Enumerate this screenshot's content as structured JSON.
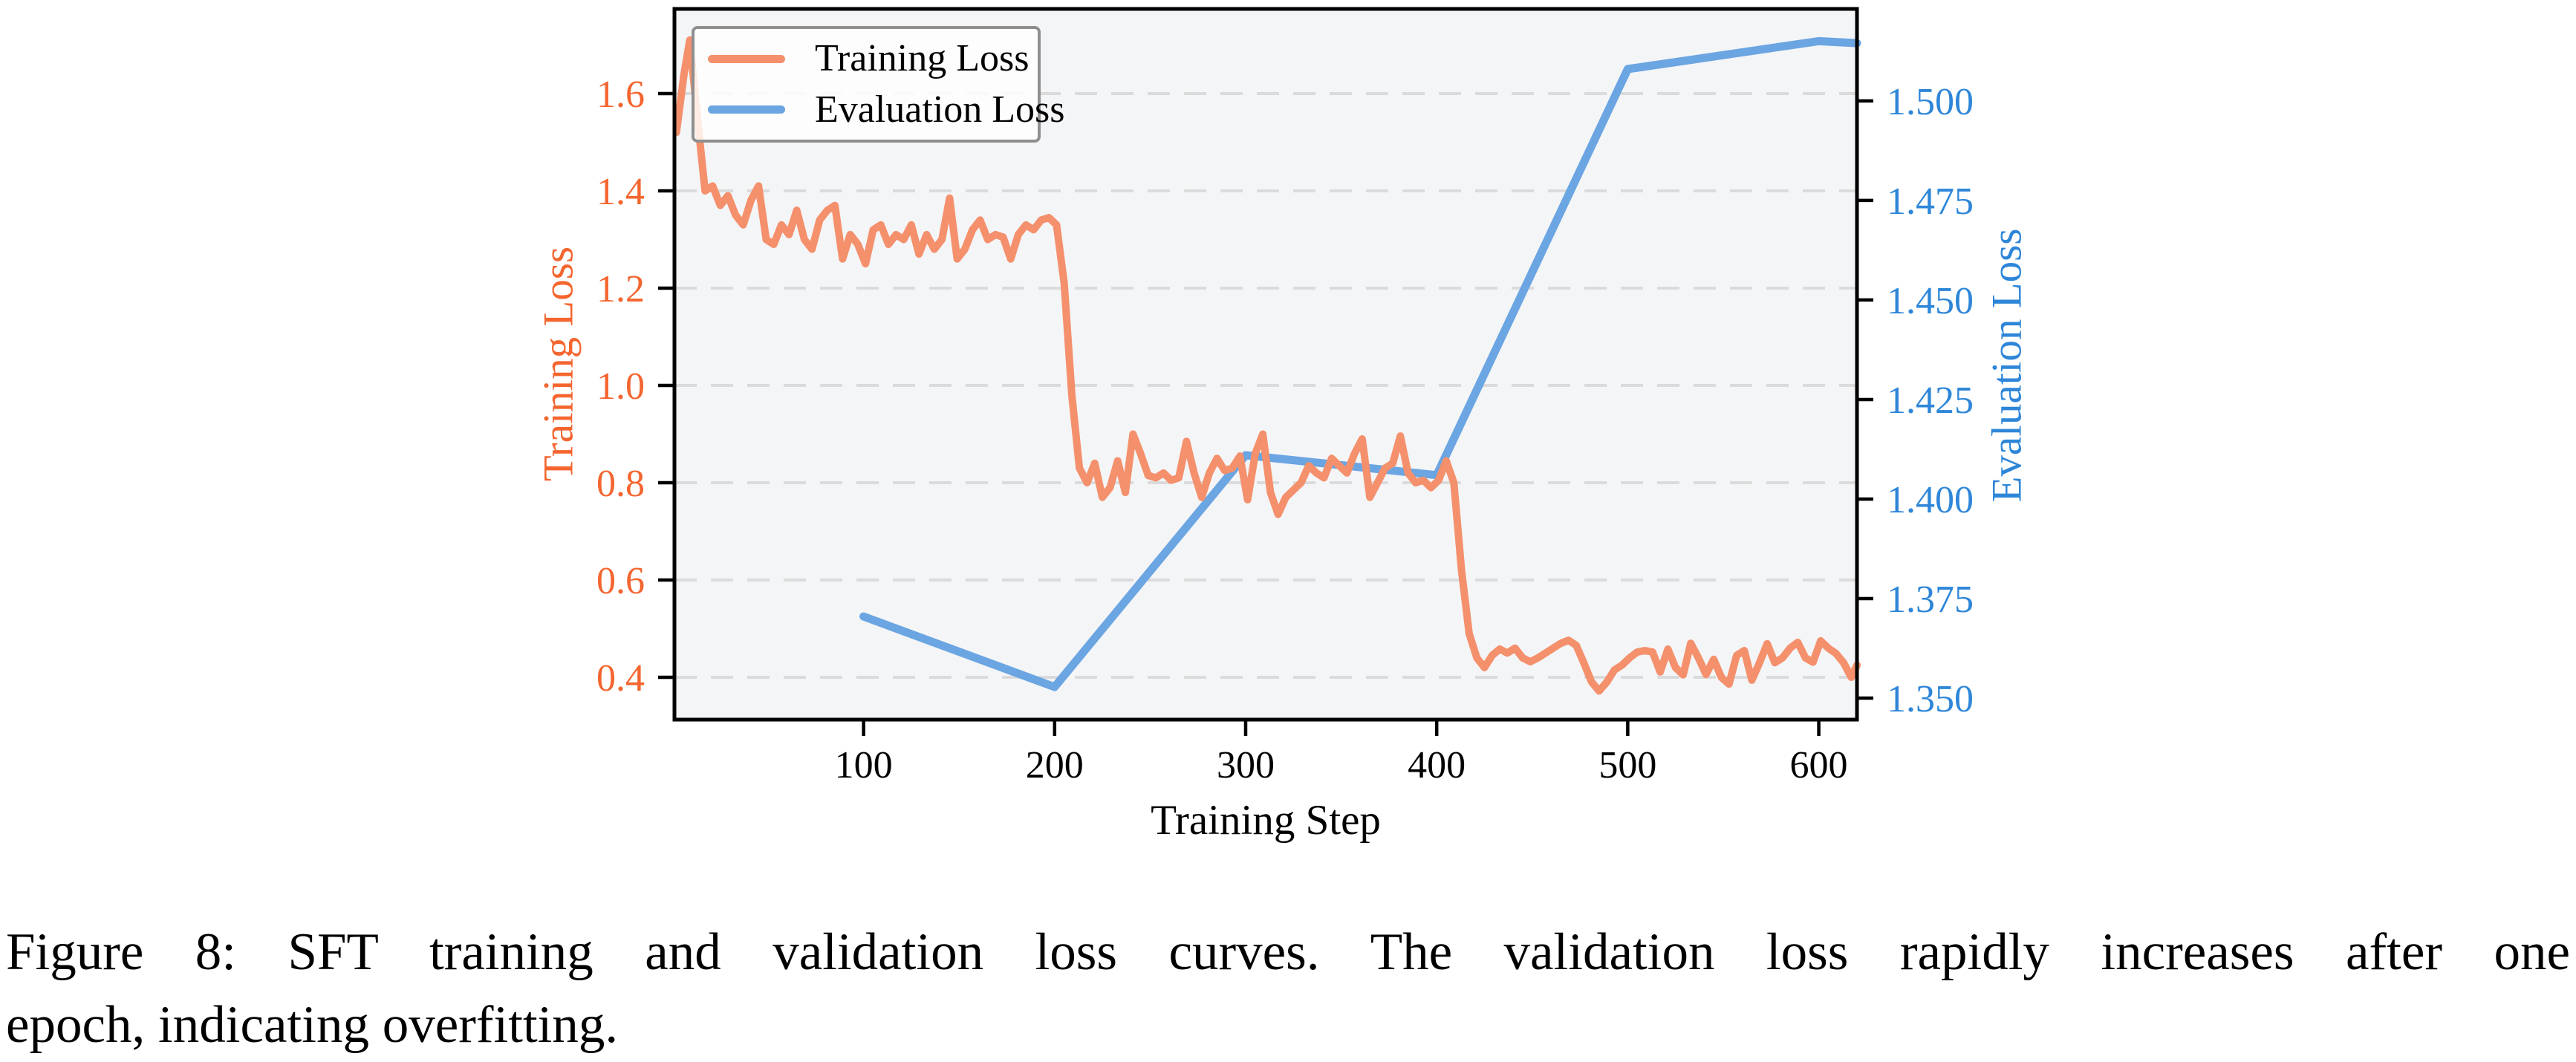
{
  "figure": {
    "caption_line1": "Figure 8: SFT training and validation loss curves. The validation loss rapidly increases after one",
    "caption_line2": "epoch, indicating overfitting."
  },
  "chart_data": {
    "type": "line",
    "title": "",
    "xlabel": "Training Step",
    "background": "#F4F5F7",
    "xlim": [
      1,
      620
    ],
    "x_ticks": [
      100,
      200,
      300,
      400,
      500,
      600
    ],
    "x_tick_labels": [
      "100",
      "200",
      "300",
      "400",
      "500",
      "600"
    ],
    "left_axis": {
      "label": "Training Loss",
      "lim": [
        0.313,
        1.774
      ],
      "ticks": [
        0.4,
        0.6,
        0.8,
        1.0,
        1.2,
        1.4,
        1.6
      ],
      "tick_labels": [
        "0.4",
        "0.6",
        "0.8",
        "1.0",
        "1.2",
        "1.4",
        "1.6"
      ],
      "color": "#F4652F"
    },
    "right_axis": {
      "label": "Evaluation Loss",
      "lim": [
        1.3446,
        1.5231
      ],
      "ticks": [
        1.35,
        1.375,
        1.4,
        1.425,
        1.45,
        1.475,
        1.5
      ],
      "tick_labels": [
        "1.350",
        "1.375",
        "1.400",
        "1.425",
        "1.450",
        "1.475",
        "1.500"
      ],
      "color": "#2E86D8"
    },
    "grid": {
      "axis": "left",
      "style": "dashed",
      "color": "#DBDBDB"
    },
    "legend": {
      "position": "upper-left",
      "entries": [
        {
          "label": "Training Loss",
          "color": "#F4906C"
        },
        {
          "label": "Evaluation Loss",
          "color": "#6BA5E2"
        }
      ]
    },
    "series": [
      {
        "name": "Evaluation Loss",
        "axis": "right",
        "color": "#6BA5E2",
        "width": 11,
        "x": [
          100,
          200,
          300,
          400,
          500,
          600,
          620
        ],
        "y": [
          1.3705,
          1.3528,
          1.411,
          1.406,
          1.508,
          1.515,
          1.5145
        ]
      },
      {
        "name": "Training Loss",
        "axis": "left",
        "color": "#F4906C",
        "width": 10,
        "x": [
          2,
          6,
          9,
          13,
          17,
          21,
          25,
          29,
          33,
          37,
          41,
          45,
          49,
          53,
          57,
          61,
          65,
          69,
          73,
          77,
          81,
          85,
          89,
          93,
          97,
          101,
          105,
          109,
          113,
          117,
          121,
          125,
          129,
          133,
          137,
          141,
          145,
          149,
          153,
          157,
          161,
          165,
          169,
          173,
          177,
          181,
          185,
          189,
          193,
          197,
          201,
          205,
          209,
          213,
          217,
          221,
          225,
          229,
          233,
          237,
          241,
          245,
          249,
          253,
          257,
          261,
          265,
          269,
          273,
          277,
          281,
          285,
          289,
          293,
          297,
          301,
          305,
          309,
          313,
          317,
          321,
          325,
          329,
          333,
          337,
          341,
          345,
          349,
          353,
          357,
          361,
          365,
          369,
          373,
          377,
          381,
          385,
          389,
          393,
          397,
          401,
          405,
          409,
          413,
          417,
          421,
          425,
          429,
          433,
          437,
          441,
          445,
          449,
          453,
          457,
          461,
          465,
          469,
          473,
          477,
          481,
          485,
          489,
          493,
          497,
          501,
          505,
          509,
          513,
          517,
          521,
          525,
          529,
          533,
          537,
          541,
          545,
          549,
          553,
          557,
          561,
          565,
          569,
          573,
          577,
          581,
          585,
          589,
          593,
          597,
          601,
          605,
          609,
          613,
          617,
          620
        ],
        "y": [
          1.52,
          1.64,
          1.71,
          1.55,
          1.4,
          1.41,
          1.37,
          1.39,
          1.35,
          1.33,
          1.38,
          1.41,
          1.3,
          1.29,
          1.33,
          1.31,
          1.36,
          1.3,
          1.28,
          1.34,
          1.36,
          1.37,
          1.26,
          1.31,
          1.29,
          1.25,
          1.32,
          1.33,
          1.29,
          1.31,
          1.3,
          1.33,
          1.27,
          1.31,
          1.28,
          1.3,
          1.385,
          1.26,
          1.28,
          1.32,
          1.34,
          1.3,
          1.31,
          1.305,
          1.26,
          1.31,
          1.33,
          1.32,
          1.34,
          1.345,
          1.33,
          1.21,
          0.98,
          0.83,
          0.8,
          0.84,
          0.77,
          0.79,
          0.845,
          0.78,
          0.9,
          0.86,
          0.815,
          0.81,
          0.82,
          0.805,
          0.81,
          0.885,
          0.82,
          0.77,
          0.82,
          0.85,
          0.825,
          0.83,
          0.855,
          0.765,
          0.86,
          0.9,
          0.78,
          0.735,
          0.77,
          0.785,
          0.8,
          0.835,
          0.82,
          0.81,
          0.85,
          0.835,
          0.82,
          0.86,
          0.89,
          0.77,
          0.8,
          0.83,
          0.84,
          0.896,
          0.82,
          0.8,
          0.805,
          0.79,
          0.805,
          0.845,
          0.8,
          0.62,
          0.49,
          0.44,
          0.42,
          0.445,
          0.458,
          0.45,
          0.46,
          0.44,
          0.432,
          0.44,
          0.45,
          0.46,
          0.47,
          0.476,
          0.466,
          0.43,
          0.391,
          0.372,
          0.39,
          0.415,
          0.425,
          0.44,
          0.452,
          0.455,
          0.452,
          0.411,
          0.458,
          0.42,
          0.405,
          0.47,
          0.44,
          0.406,
          0.437,
          0.4,
          0.386,
          0.445,
          0.455,
          0.394,
          0.43,
          0.469,
          0.43,
          0.44,
          0.46,
          0.472,
          0.44,
          0.431,
          0.475,
          0.46,
          0.449,
          0.43,
          0.4,
          0.425
        ]
      }
    ]
  }
}
